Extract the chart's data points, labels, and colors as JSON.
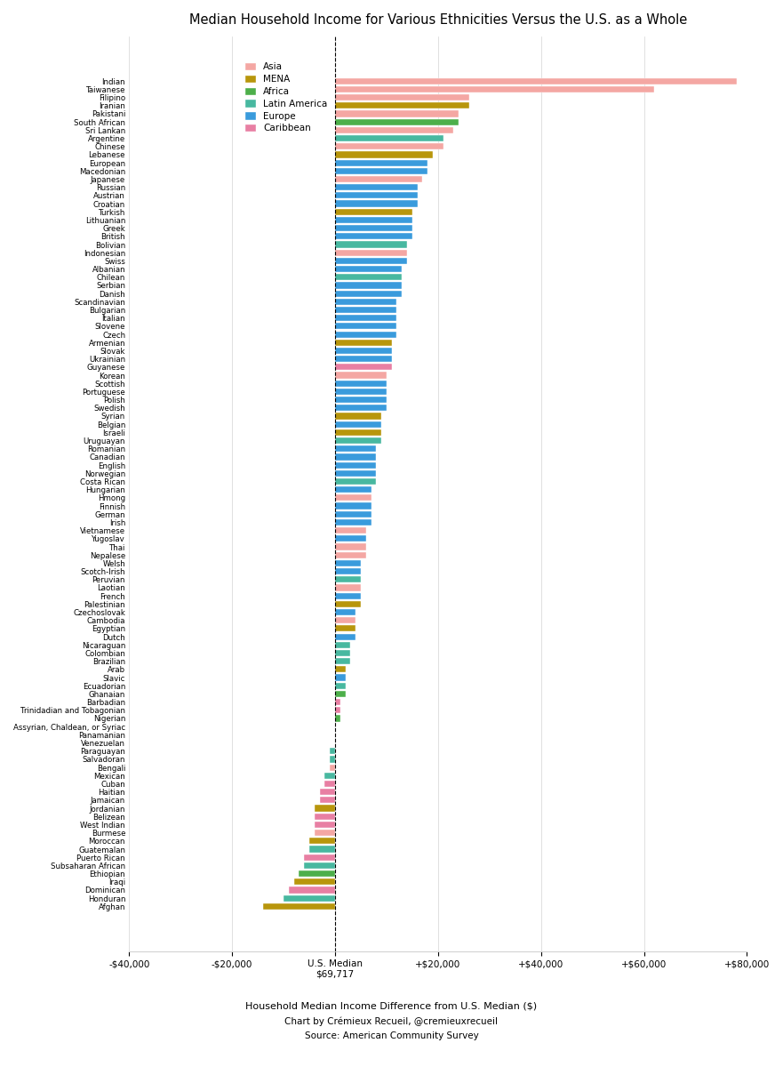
{
  "title": "Median Household Income for Various Ethnicities Versus the U.S. as a Whole",
  "xlabel": "Household Median Income Difference from U.S. Median ($)",
  "footnote1": "Chart by Crémieux Recueil, @cremieuxrecueil",
  "footnote2": "Source: American Community Survey",
  "entries": [
    {
      "name": "Indian",
      "value": 78000,
      "color": "#f4a7a3"
    },
    {
      "name": "Taiwanese",
      "value": 62000,
      "color": "#f4a7a3"
    },
    {
      "name": "Filipino",
      "value": 26000,
      "color": "#f4a7a3"
    },
    {
      "name": "Iranian",
      "value": 26000,
      "color": "#b8960c"
    },
    {
      "name": "Pakistani",
      "value": 24000,
      "color": "#f4a7a3"
    },
    {
      "name": "South African",
      "value": 24000,
      "color": "#4daf4a"
    },
    {
      "name": "Sri Lankan",
      "value": 23000,
      "color": "#f4a7a3"
    },
    {
      "name": "Argentine",
      "value": 21000,
      "color": "#48b8a0"
    },
    {
      "name": "Chinese",
      "value": 21000,
      "color": "#f4a7a3"
    },
    {
      "name": "Lebanese",
      "value": 19000,
      "color": "#b8960c"
    },
    {
      "name": "European",
      "value": 18000,
      "color": "#3a9bdc"
    },
    {
      "name": "Macedonian",
      "value": 18000,
      "color": "#3a9bdc"
    },
    {
      "name": "Japanese",
      "value": 17000,
      "color": "#f4a7a3"
    },
    {
      "name": "Russian",
      "value": 16000,
      "color": "#3a9bdc"
    },
    {
      "name": "Austrian",
      "value": 16000,
      "color": "#3a9bdc"
    },
    {
      "name": "Croatian",
      "value": 16000,
      "color": "#3a9bdc"
    },
    {
      "name": "Turkish",
      "value": 15000,
      "color": "#b8960c"
    },
    {
      "name": "Lithuanian",
      "value": 15000,
      "color": "#3a9bdc"
    },
    {
      "name": "Greek",
      "value": 15000,
      "color": "#3a9bdc"
    },
    {
      "name": "British",
      "value": 15000,
      "color": "#3a9bdc"
    },
    {
      "name": "Bolivian",
      "value": 14000,
      "color": "#48b8a0"
    },
    {
      "name": "Indonesian",
      "value": 14000,
      "color": "#f4a7a3"
    },
    {
      "name": "Swiss",
      "value": 14000,
      "color": "#3a9bdc"
    },
    {
      "name": "Albanian",
      "value": 13000,
      "color": "#3a9bdc"
    },
    {
      "name": "Chilean",
      "value": 13000,
      "color": "#48b8a0"
    },
    {
      "name": "Serbian",
      "value": 13000,
      "color": "#3a9bdc"
    },
    {
      "name": "Danish",
      "value": 13000,
      "color": "#3a9bdc"
    },
    {
      "name": "Scandinavian",
      "value": 12000,
      "color": "#3a9bdc"
    },
    {
      "name": "Bulgarian",
      "value": 12000,
      "color": "#3a9bdc"
    },
    {
      "name": "Italian",
      "value": 12000,
      "color": "#3a9bdc"
    },
    {
      "name": "Slovene",
      "value": 12000,
      "color": "#3a9bdc"
    },
    {
      "name": "Czech",
      "value": 12000,
      "color": "#3a9bdc"
    },
    {
      "name": "Armenian",
      "value": 11000,
      "color": "#b8960c"
    },
    {
      "name": "Slovak",
      "value": 11000,
      "color": "#3a9bdc"
    },
    {
      "name": "Ukrainian",
      "value": 11000,
      "color": "#3a9bdc"
    },
    {
      "name": "Guyanese",
      "value": 11000,
      "color": "#e87fa3"
    },
    {
      "name": "Korean",
      "value": 10000,
      "color": "#f4a7a3"
    },
    {
      "name": "Scottish",
      "value": 10000,
      "color": "#3a9bdc"
    },
    {
      "name": "Portuguese",
      "value": 10000,
      "color": "#3a9bdc"
    },
    {
      "name": "Polish",
      "value": 10000,
      "color": "#3a9bdc"
    },
    {
      "name": "Swedish",
      "value": 10000,
      "color": "#3a9bdc"
    },
    {
      "name": "Syrian",
      "value": 9000,
      "color": "#b8960c"
    },
    {
      "name": "Belgian",
      "value": 9000,
      "color": "#3a9bdc"
    },
    {
      "name": "Israeli",
      "value": 9000,
      "color": "#b8960c"
    },
    {
      "name": "Uruguayan",
      "value": 9000,
      "color": "#48b8a0"
    },
    {
      "name": "Romanian",
      "value": 8000,
      "color": "#3a9bdc"
    },
    {
      "name": "Canadian",
      "value": 8000,
      "color": "#3a9bdc"
    },
    {
      "name": "English",
      "value": 8000,
      "color": "#3a9bdc"
    },
    {
      "name": "Norwegian",
      "value": 8000,
      "color": "#3a9bdc"
    },
    {
      "name": "Costa Rican",
      "value": 8000,
      "color": "#48b8a0"
    },
    {
      "name": "Hungarian",
      "value": 7000,
      "color": "#3a9bdc"
    },
    {
      "name": "Hmong",
      "value": 7000,
      "color": "#f4a7a3"
    },
    {
      "name": "Finnish",
      "value": 7000,
      "color": "#3a9bdc"
    },
    {
      "name": "German",
      "value": 7000,
      "color": "#3a9bdc"
    },
    {
      "name": "Irish",
      "value": 7000,
      "color": "#3a9bdc"
    },
    {
      "name": "Vietnamese",
      "value": 6000,
      "color": "#f4a7a3"
    },
    {
      "name": "Yugoslav",
      "value": 6000,
      "color": "#3a9bdc"
    },
    {
      "name": "Thai",
      "value": 6000,
      "color": "#f4a7a3"
    },
    {
      "name": "Nepalese",
      "value": 6000,
      "color": "#f4a7a3"
    },
    {
      "name": "Welsh",
      "value": 5000,
      "color": "#3a9bdc"
    },
    {
      "name": "Scotch-Irish",
      "value": 5000,
      "color": "#3a9bdc"
    },
    {
      "name": "Peruvian",
      "value": 5000,
      "color": "#48b8a0"
    },
    {
      "name": "Laotian",
      "value": 5000,
      "color": "#f4a7a3"
    },
    {
      "name": "French",
      "value": 5000,
      "color": "#3a9bdc"
    },
    {
      "name": "Palestinian",
      "value": 5000,
      "color": "#b8960c"
    },
    {
      "name": "Czechoslovak",
      "value": 4000,
      "color": "#3a9bdc"
    },
    {
      "name": "Cambodia",
      "value": 4000,
      "color": "#f4a7a3"
    },
    {
      "name": "Egyptian",
      "value": 4000,
      "color": "#b8960c"
    },
    {
      "name": "Dutch",
      "value": 4000,
      "color": "#3a9bdc"
    },
    {
      "name": "Nicaraguan",
      "value": 3000,
      "color": "#48b8a0"
    },
    {
      "name": "Colombian",
      "value": 3000,
      "color": "#48b8a0"
    },
    {
      "name": "Brazilian",
      "value": 3000,
      "color": "#48b8a0"
    },
    {
      "name": "Arab",
      "value": 2000,
      "color": "#b8960c"
    },
    {
      "name": "Slavic",
      "value": 2000,
      "color": "#3a9bdc"
    },
    {
      "name": "Ecuadorian",
      "value": 2000,
      "color": "#48b8a0"
    },
    {
      "name": "Ghanaian",
      "value": 2000,
      "color": "#4daf4a"
    },
    {
      "name": "Barbadian",
      "value": 1000,
      "color": "#e87fa3"
    },
    {
      "name": "Trinidadian and Tobagonian",
      "value": 1000,
      "color": "#e87fa3"
    },
    {
      "name": "Nigerian",
      "value": 1000,
      "color": "#4daf4a"
    },
    {
      "name": "Assyrian, Chaldean, or Syriac",
      "value": 0,
      "color": "#b8960c"
    },
    {
      "name": "Panamanian",
      "value": 0,
      "color": "#e87fa3"
    },
    {
      "name": "Venezuelan",
      "value": 0,
      "color": "#48b8a0"
    },
    {
      "name": "Paraguayan",
      "value": -1000,
      "color": "#48b8a0"
    },
    {
      "name": "Salvadoran",
      "value": -1000,
      "color": "#48b8a0"
    },
    {
      "name": "Bengali",
      "value": -1000,
      "color": "#f4a7a3"
    },
    {
      "name": "Mexican",
      "value": -2000,
      "color": "#48b8a0"
    },
    {
      "name": "Cuban",
      "value": -2000,
      "color": "#e87fa3"
    },
    {
      "name": "Haitian",
      "value": -3000,
      "color": "#e87fa3"
    },
    {
      "name": "Jamaican",
      "value": -3000,
      "color": "#e87fa3"
    },
    {
      "name": "Jordanian",
      "value": -4000,
      "color": "#b8960c"
    },
    {
      "name": "Belizean",
      "value": -4000,
      "color": "#e87fa3"
    },
    {
      "name": "West Indian",
      "value": -4000,
      "color": "#e87fa3"
    },
    {
      "name": "Burmese",
      "value": -4000,
      "color": "#f4a7a3"
    },
    {
      "name": "Moroccan",
      "value": -5000,
      "color": "#b8960c"
    },
    {
      "name": "Guatemalan",
      "value": -5000,
      "color": "#48b8a0"
    },
    {
      "name": "Puerto Rican",
      "value": -6000,
      "color": "#e87fa3"
    },
    {
      "name": "Subsaharan African",
      "value": -6000,
      "color": "#48b8a0"
    },
    {
      "name": "Ethiopian",
      "value": -7000,
      "color": "#4daf4a"
    },
    {
      "name": "Iraqi",
      "value": -8000,
      "color": "#b8960c"
    },
    {
      "name": "Dominican",
      "value": -9000,
      "color": "#e87fa3"
    },
    {
      "name": "Honduran",
      "value": -10000,
      "color": "#48b8a0"
    },
    {
      "name": "Afghan",
      "value": -14000,
      "color": "#b8960c"
    }
  ],
  "legend": {
    "Asia": "#f4a7a3",
    "MENA": "#b8960c",
    "Africa": "#4daf4a",
    "Latin America": "#48b8a0",
    "Europe": "#3a9bdc",
    "Caribbean": "#e87fa3"
  },
  "xlim": [
    -40000,
    80000
  ],
  "xticks": [
    -40000,
    -20000,
    0,
    20000,
    40000,
    60000,
    80000
  ],
  "xtick_labels": [
    "-$40,000",
    "-$20,000",
    "U.S. Median\n$69,717",
    "+$20,000",
    "+$40,000",
    "+$60,000",
    "+$80,000"
  ]
}
